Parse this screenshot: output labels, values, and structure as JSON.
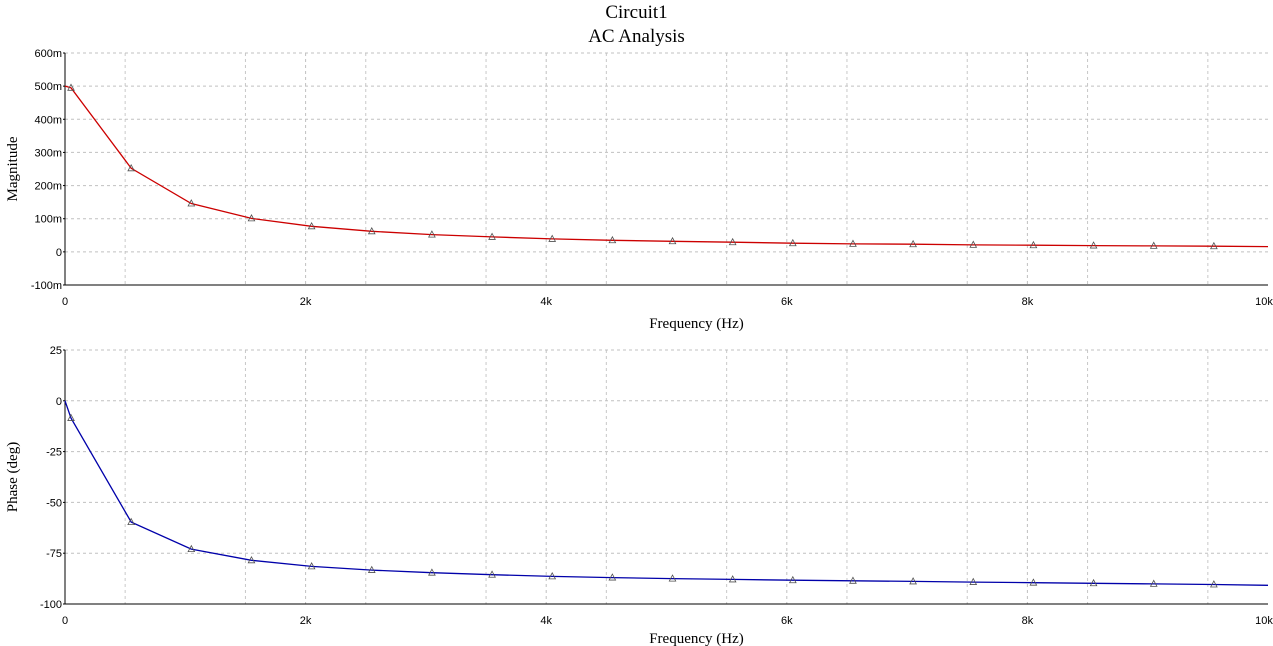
{
  "chart_data": [
    {
      "type": "line",
      "title": "Circuit1",
      "subtitle": "AC Analysis",
      "xlabel": "Frequency (Hz)",
      "ylabel": "Magnitude",
      "xlim": [
        0,
        10000
      ],
      "ylim": [
        -0.1,
        0.6
      ],
      "x_tick_values": [
        0,
        2000,
        4000,
        6000,
        8000,
        10000
      ],
      "x_tick_labels": [
        "0",
        "2k",
        "4k",
        "6k",
        "8k",
        "10k"
      ],
      "y_tick_values": [
        -0.1,
        0,
        0.1,
        0.2,
        0.3,
        0.4,
        0.5,
        0.6
      ],
      "y_tick_labels": [
        "-100m",
        "0",
        "100m",
        "200m",
        "300m",
        "400m",
        "500m",
        "600m"
      ],
      "grid": true,
      "color": "#cc0000",
      "series": [
        {
          "x": [
            0,
            50,
            550,
            1050,
            1550,
            2050,
            2550,
            3050,
            3550,
            4050,
            4550,
            5050,
            5550,
            6050,
            6550,
            7050,
            7550,
            8050,
            8550,
            9050,
            9550,
            10000
          ],
          "values": [
            0.5,
            0.495,
            0.252,
            0.146,
            0.101,
            0.077,
            0.062,
            0.052,
            0.045,
            0.039,
            0.035,
            0.032,
            0.029,
            0.026,
            0.024,
            0.023,
            0.021,
            0.02,
            0.019,
            0.018,
            0.017,
            0.016
          ]
        }
      ]
    },
    {
      "type": "line",
      "title": "",
      "xlabel": "Frequency (Hz)",
      "ylabel": "Phase (deg)",
      "xlim": [
        0,
        10000
      ],
      "ylim": [
        -100,
        25
      ],
      "x_tick_values": [
        0,
        2000,
        4000,
        6000,
        8000,
        10000
      ],
      "x_tick_labels": [
        "0",
        "2k",
        "4k",
        "6k",
        "8k",
        "10k"
      ],
      "y_tick_values": [
        -100,
        -75,
        -50,
        -25,
        0,
        25
      ],
      "y_tick_labels": [
        "-100",
        "-75",
        "-50",
        "-25",
        "0",
        "25"
      ],
      "grid": true,
      "color": "#0000aa",
      "series": [
        {
          "x": [
            0,
            50,
            550,
            1050,
            1550,
            2050,
            2550,
            3050,
            3550,
            4050,
            4550,
            5050,
            5550,
            6050,
            6550,
            7050,
            7550,
            8050,
            8550,
            9050,
            9550,
            10000
          ],
          "values": [
            0,
            -8.5,
            -59.7,
            -73,
            -78.5,
            -81.5,
            -83.3,
            -84.6,
            -85.6,
            -86.4,
            -87,
            -87.5,
            -87.9,
            -88.3,
            -88.6,
            -88.9,
            -89.2,
            -89.5,
            -89.8,
            -90.1,
            -90.4,
            -90.8
          ]
        }
      ]
    }
  ]
}
